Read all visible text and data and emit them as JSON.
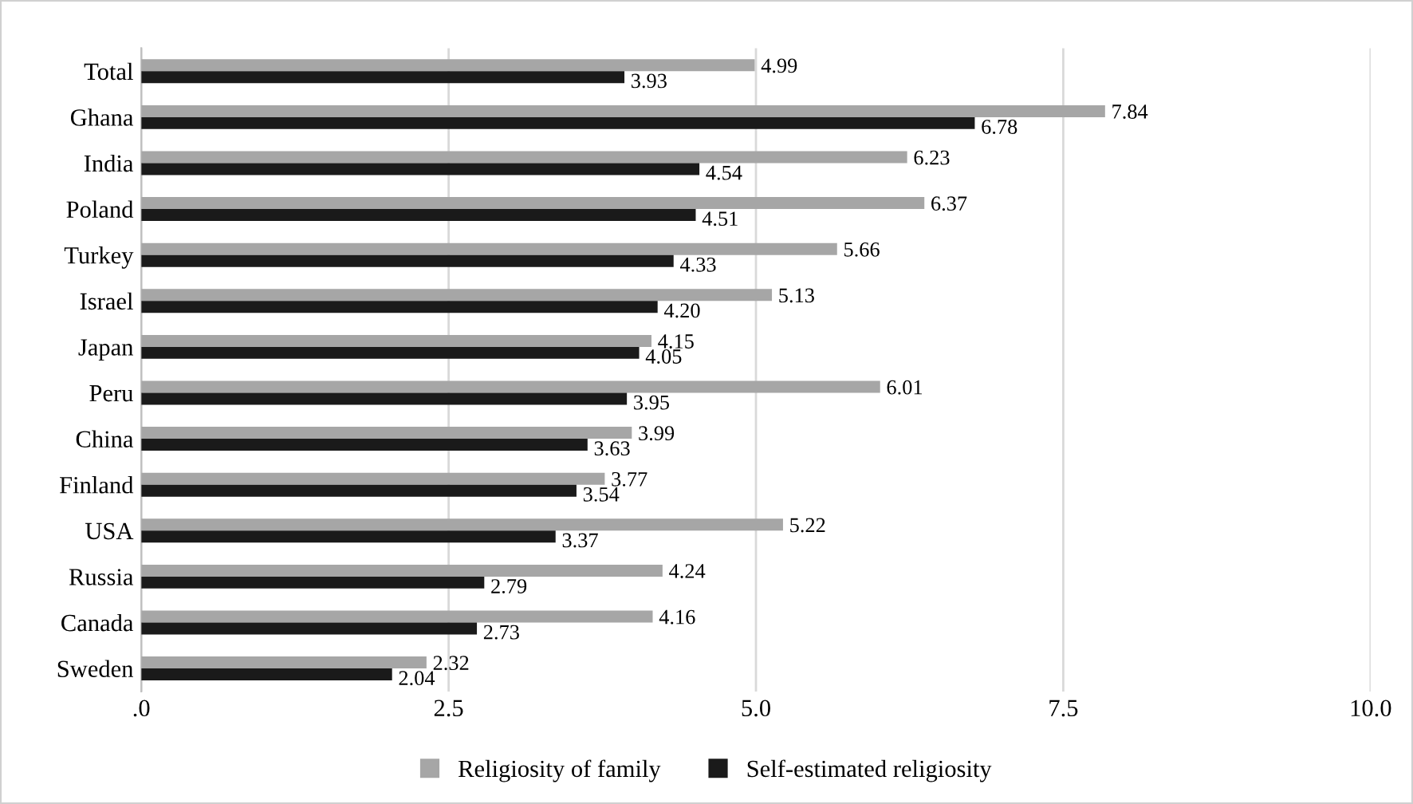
{
  "chart_data": {
    "type": "bar",
    "orientation": "horizontal",
    "categories": [
      "Total",
      "Ghana",
      "India",
      "Poland",
      "Turkey",
      "Israel",
      "Japan",
      "Peru",
      "China",
      "Finland",
      "USA",
      "Russia",
      "Canada",
      "Sweden"
    ],
    "series": [
      {
        "name": "Religiosity of family",
        "color": "#a6a6a6",
        "values": [
          4.99,
          7.84,
          6.23,
          6.37,
          5.66,
          5.13,
          4.15,
          6.01,
          3.99,
          3.77,
          5.22,
          4.24,
          4.16,
          2.32
        ],
        "value_labels": [
          "4.99",
          "7.84",
          "6.23",
          "6.37",
          "5.66",
          "5.13",
          "4.15",
          "6.01",
          "3.99",
          "3.77",
          "5.22",
          "4.24",
          "4.16",
          "2.32"
        ]
      },
      {
        "name": "Self-estimated religiosity",
        "color": "#1a1a1a",
        "values": [
          3.93,
          6.78,
          4.54,
          4.51,
          4.33,
          4.2,
          4.05,
          3.95,
          3.63,
          3.54,
          3.37,
          2.79,
          2.73,
          2.04
        ],
        "value_labels": [
          "3.93",
          "6.78",
          "4.54",
          "4.51",
          "4.33",
          "4.20",
          "4.05",
          "3.95",
          "3.63",
          "3.54",
          "3.37",
          "2.79",
          "2.73",
          "2.04"
        ]
      }
    ],
    "xlim": [
      0,
      10
    ],
    "xticks": [
      {
        "value": 0,
        "label": ".0"
      },
      2.5,
      {
        "value": 5,
        "label": "5.0"
      },
      7.5,
      {
        "value": 10,
        "label": "10.0"
      }
    ],
    "grid": "x",
    "legend": "bottom"
  }
}
